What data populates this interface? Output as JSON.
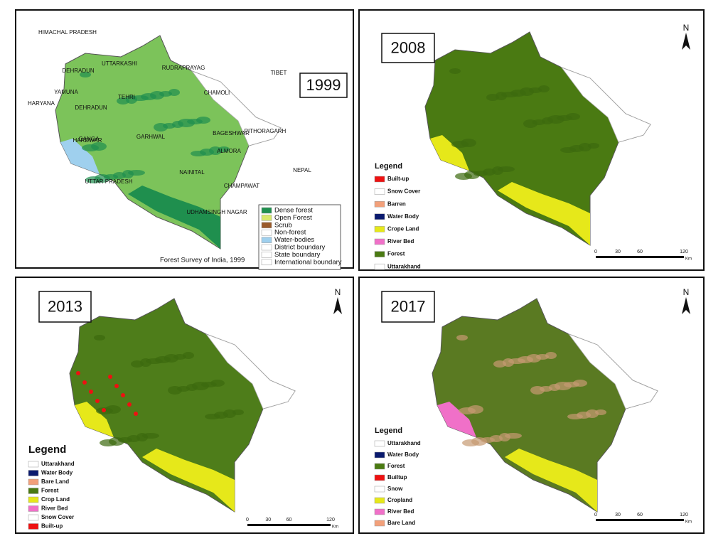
{
  "panels": [
    {
      "year": "1999",
      "places": [
        "HIMACHAL PRADESH",
        "UTTARKASHI",
        "DEHRADUN",
        "RUDRAPRAYAG",
        "TEHRI",
        "CHAMOLI",
        "HARYANA",
        "DEHRADUN",
        "YAMUNA",
        "GANGA",
        "HARDWAR",
        "GARHWAL",
        "BAGESHWAR",
        "PITHORAGARH",
        "ALMORA",
        "NAINITAL",
        "CHAMPAWAT",
        "UTTAR PRADESH",
        "UDHAMSINGH NAGAR",
        "TIBET",
        "NEPAL"
      ],
      "legend": [
        {
          "label": "Dense forest",
          "color": "#1f8f4e"
        },
        {
          "label": "Open Forest",
          "color": "#d8e86a"
        },
        {
          "label": "Scrub",
          "color": "#9a5a2a"
        },
        {
          "label": "Non-forest",
          "color": "#ffffff"
        },
        {
          "label": "Water-bodies",
          "color": "#9fd0ee"
        },
        {
          "label": "District boundary",
          "color": "#ffffff"
        },
        {
          "label": "State boundary",
          "color": "#ffffff"
        },
        {
          "label": "International boundary",
          "color": "#ffffff"
        }
      ],
      "credit": "Forest Survey of India, 1999"
    },
    {
      "year": "2008",
      "north": "N",
      "legend_title": "Legend",
      "legend": [
        {
          "label": "Built-up",
          "color": "#ee1111"
        },
        {
          "label": "Snow Cover",
          "color": "#ffffff"
        },
        {
          "label": "Barren",
          "color": "#f2a07a"
        },
        {
          "label": "Water Body",
          "color": "#0a1a6e"
        },
        {
          "label": "Crope Land",
          "color": "#e6e81a"
        },
        {
          "label": "River Bed",
          "color": "#f070c8"
        },
        {
          "label": "Forest",
          "color": "#4a7a12"
        },
        {
          "label": "Uttarakhand",
          "color": "#ffffff"
        }
      ],
      "scale_labels": [
        0,
        30,
        60,
        120
      ],
      "scale_unit": "Km"
    },
    {
      "year": "2013",
      "north": "N",
      "legend_title": "Legend",
      "legend": [
        {
          "label": "Uttarakhand",
          "color": "#ffffff"
        },
        {
          "label": "Water Body",
          "color": "#0a1a6e"
        },
        {
          "label": "Bare Land",
          "color": "#f2a07a"
        },
        {
          "label": "Forest",
          "color": "#4a7a12"
        },
        {
          "label": "Crop Land",
          "color": "#e6e81a"
        },
        {
          "label": "River Bed",
          "color": "#f070c8"
        },
        {
          "label": "Snow Cover",
          "color": "#ffffff"
        },
        {
          "label": "Built-up",
          "color": "#ee1111"
        }
      ],
      "scale_labels": [
        0,
        30,
        60,
        120
      ],
      "scale_unit": "Km"
    },
    {
      "year": "2017",
      "north": "N",
      "legend_title": "Legend",
      "legend": [
        {
          "label": "Uttarakhand",
          "color": "#ffffff"
        },
        {
          "label": "Water Body",
          "color": "#0a1a6e"
        },
        {
          "label": "Forest",
          "color": "#4a7a12"
        },
        {
          "label": "Builtup",
          "color": "#ee1111"
        },
        {
          "label": "Snow",
          "color": "#ffffff"
        },
        {
          "label": "Cropland",
          "color": "#e6e81a"
        },
        {
          "label": "River Bed",
          "color": "#f070c8"
        },
        {
          "label": "Bare Land",
          "color": "#f2a07a"
        }
      ],
      "scale_labels": [
        0,
        30,
        60,
        120
      ],
      "scale_unit": "Km"
    }
  ]
}
